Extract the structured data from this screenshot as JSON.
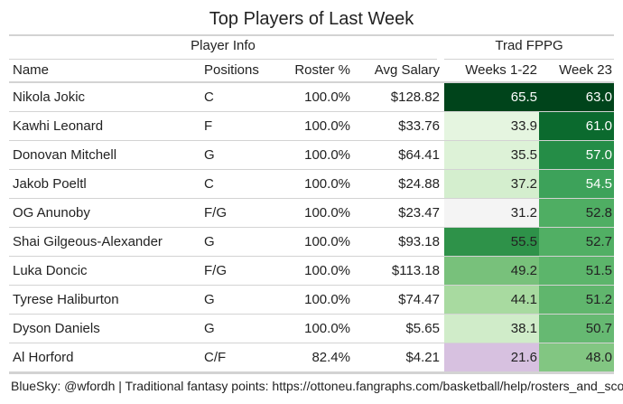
{
  "title": "Top Players of Last Week",
  "groups": {
    "player_info": "Player Info",
    "fppg": "Trad FPPG"
  },
  "columns": {
    "name": "Name",
    "positions": "Positions",
    "roster": "Roster %",
    "salary": "Avg Salary",
    "weeks_1_22": "Weeks 1-22",
    "week_23": "Week 23"
  },
  "rows": [
    {
      "name": "Nikola Jokic",
      "positions": "C",
      "roster": "100.0%",
      "salary": "$128.82",
      "weeks_1_22": "65.5",
      "week_23": "63.0",
      "c1": "#00441b",
      "t1": "#ffffff",
      "c2": "#00441b",
      "t2": "#ffffff"
    },
    {
      "name": "Kawhi Leonard",
      "positions": "F",
      "roster": "100.0%",
      "salary": "$33.76",
      "weeks_1_22": "33.9",
      "week_23": "61.0",
      "c1": "#e5f5e0",
      "t1": "#222222",
      "c2": "#0b6a2e",
      "t2": "#ffffff"
    },
    {
      "name": "Donovan Mitchell",
      "positions": "G",
      "roster": "100.0%",
      "salary": "$64.41",
      "weeks_1_22": "35.5",
      "week_23": "57.0",
      "c1": "#ddf2d7",
      "t1": "#222222",
      "c2": "#258d47",
      "t2": "#ffffff"
    },
    {
      "name": "Jakob Poeltl",
      "positions": "C",
      "roster": "100.0%",
      "salary": "$24.88",
      "weeks_1_22": "37.2",
      "week_23": "54.5",
      "c1": "#d4eece",
      "t1": "#222222",
      "c2": "#3da25a",
      "t2": "#ffffff"
    },
    {
      "name": "OG Anunoby",
      "positions": "F/G",
      "roster": "100.0%",
      "salary": "$23.47",
      "weeks_1_22": "31.2",
      "week_23": "52.8",
      "c1": "#f4f4f4",
      "t1": "#222222",
      "c2": "#4fae63",
      "t2": "#222222"
    },
    {
      "name": "Shai Gilgeous-Alexander",
      "positions": "G",
      "roster": "100.0%",
      "salary": "$93.18",
      "weeks_1_22": "55.5",
      "week_23": "52.7",
      "c1": "#2e9249",
      "t1": "#222222",
      "c2": "#51af64",
      "t2": "#222222"
    },
    {
      "name": "Luka Doncic",
      "positions": "F/G",
      "roster": "100.0%",
      "salary": "$113.18",
      "weeks_1_22": "49.2",
      "week_23": "51.5",
      "c1": "#78c17b",
      "t1": "#222222",
      "c2": "#5cb56b",
      "t2": "#222222"
    },
    {
      "name": "Tyrese Haliburton",
      "positions": "G",
      "roster": "100.0%",
      "salary": "$74.47",
      "weeks_1_22": "44.1",
      "week_23": "51.2",
      "c1": "#a8daa0",
      "t1": "#222222",
      "c2": "#60b66d",
      "t2": "#222222"
    },
    {
      "name": "Dyson Daniels",
      "positions": "G",
      "roster": "100.0%",
      "salary": "$5.65",
      "weeks_1_22": "38.1",
      "week_23": "50.7",
      "c1": "#d0ecc9",
      "t1": "#222222",
      "c2": "#66b972",
      "t2": "#222222"
    },
    {
      "name": "Al Horford",
      "positions": "C/F",
      "roster": "82.4%",
      "salary": "$4.21",
      "weeks_1_22": "21.6",
      "week_23": "48.0",
      "c1": "#d7c1e0",
      "t1": "#222222",
      "c2": "#82c682",
      "t2": "#222222"
    }
  ],
  "footer": "BlueSky: @wfordh | Traditional fantasy points: https://ottoneu.fangraphs.com/basketball/help/rosters_and_scoring"
}
